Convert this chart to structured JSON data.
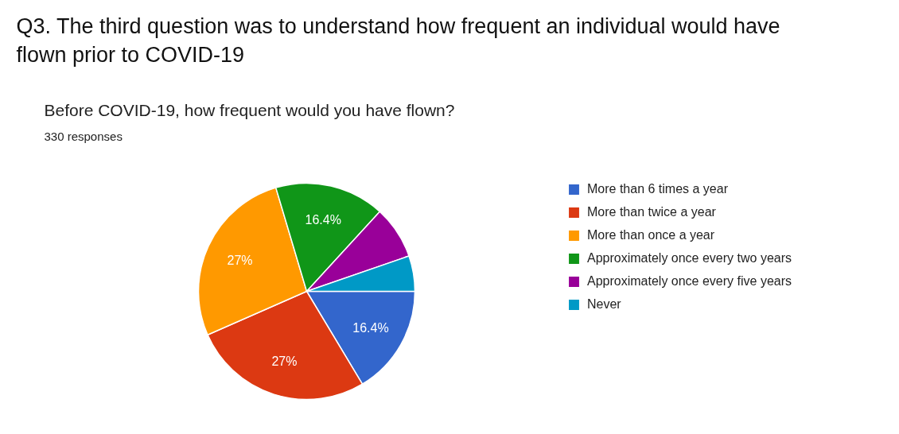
{
  "chart_data": {
    "type": "pie",
    "title": "Before COVID-19, how frequent would you have flown?",
    "subtitle": "330 responses",
    "annotations": [
      "Q3. The third question was to understand how frequent an individual would have flown prior to COVID-19"
    ],
    "categories": [
      "More than 6 times a year",
      "More than twice a year",
      "More than once a year",
      "Approximately once every two years",
      "Approximately once every five years",
      "Never"
    ],
    "values": [
      16.4,
      27,
      27,
      16.4,
      7.9,
      5.3
    ],
    "value_labels": [
      "16.4%",
      "27%",
      "27%",
      "16.4%",
      null,
      null
    ],
    "colors": [
      "#3366cc",
      "#dc3912",
      "#ff9900",
      "#109618",
      "#990099",
      "#0099c6"
    ],
    "legend": "right"
  }
}
